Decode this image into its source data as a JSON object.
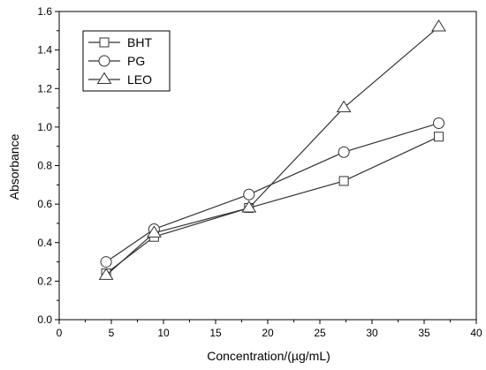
{
  "chart_data": {
    "type": "line",
    "xlabel": "Concentration/(µg/mL)",
    "ylabel": "Absorbance",
    "xlim": [
      0,
      40
    ],
    "ylim": [
      0.0,
      1.6
    ],
    "x_ticks": [
      0,
      5,
      10,
      15,
      20,
      25,
      30,
      35,
      40
    ],
    "y_ticks": [
      0.0,
      0.2,
      0.4,
      0.6,
      0.8,
      1.0,
      1.2,
      1.4,
      1.6
    ],
    "grid": false,
    "legend_position": "top-left",
    "series": [
      {
        "name": "BHT",
        "marker": "square",
        "color": "#333333",
        "x": [
          4.5,
          9.1,
          18.2,
          27.3,
          36.4
        ],
        "y": [
          0.24,
          0.43,
          0.58,
          0.72,
          0.95
        ]
      },
      {
        "name": "PG",
        "marker": "circle",
        "color": "#333333",
        "x": [
          4.5,
          9.1,
          18.2,
          27.3,
          36.4
        ],
        "y": [
          0.3,
          0.47,
          0.65,
          0.87,
          1.02
        ]
      },
      {
        "name": "LEO",
        "marker": "triangle",
        "color": "#333333",
        "x": [
          4.5,
          9.1,
          18.2,
          27.3,
          36.4
        ],
        "y": [
          0.23,
          0.45,
          0.58,
          1.1,
          1.52
        ]
      }
    ]
  }
}
